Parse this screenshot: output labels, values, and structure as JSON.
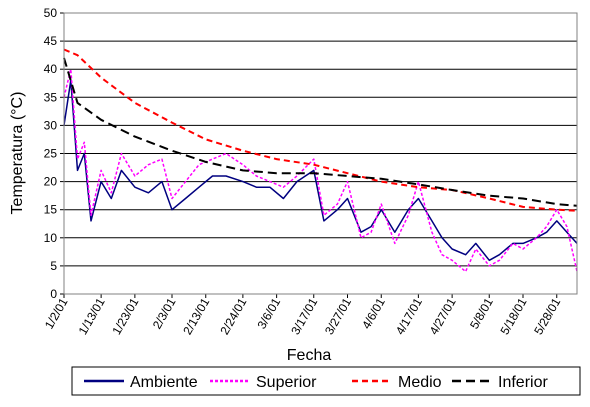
{
  "chart_data": {
    "type": "line",
    "xlabel": "Fecha",
    "ylabel": "Temperatura (°C)",
    "ylim": [
      0,
      50
    ],
    "yticks": [
      0,
      5,
      10,
      15,
      20,
      25,
      30,
      35,
      40,
      45,
      50
    ],
    "xlim": [
      "2001-01-02",
      "2001-06-03"
    ],
    "xtick_dates": [
      "2001-01-02",
      "2001-01-13",
      "2001-01-23",
      "2001-02-03",
      "2001-02-13",
      "2001-02-24",
      "2001-03-06",
      "2001-03-17",
      "2001-03-27",
      "2001-04-06",
      "2001-04-17",
      "2001-04-27",
      "2001-05-08",
      "2001-05-18",
      "2001-05-28"
    ],
    "xtick_labels": [
      "1/2/01",
      "1/13/01",
      "1/23/01",
      "2/3/01",
      "2/13/01",
      "2/24/01",
      "3/6/01",
      "3/17/01",
      "3/27/01",
      "4/6/01",
      "4/17/01",
      "4/27/01",
      "5/8/01",
      "5/18/01",
      "5/28/01"
    ],
    "grid": "horizontal",
    "legend_position": "bottom",
    "series": [
      {
        "name": "Ambiente",
        "color": "#000080",
        "style": "solid",
        "x": [
          "2001-01-02",
          "2001-01-04",
          "2001-01-06",
          "2001-01-08",
          "2001-01-10",
          "2001-01-13",
          "2001-01-16",
          "2001-01-19",
          "2001-01-23",
          "2001-01-27",
          "2001-01-31",
          "2001-02-03",
          "2001-02-07",
          "2001-02-11",
          "2001-02-15",
          "2001-02-19",
          "2001-02-24",
          "2001-02-28",
          "2001-03-04",
          "2001-03-08",
          "2001-03-12",
          "2001-03-17",
          "2001-03-20",
          "2001-03-24",
          "2001-03-27",
          "2001-03-31",
          "2001-04-03",
          "2001-04-06",
          "2001-04-10",
          "2001-04-14",
          "2001-04-17",
          "2001-04-21",
          "2001-04-24",
          "2001-04-27",
          "2001-05-01",
          "2001-05-04",
          "2001-05-08",
          "2001-05-11",
          "2001-05-15",
          "2001-05-18",
          "2001-05-22",
          "2001-05-25",
          "2001-05-28",
          "2001-05-31",
          "2001-06-03"
        ],
        "y": [
          30,
          38,
          22,
          25,
          13,
          20,
          17,
          22,
          19,
          18,
          20,
          15,
          17,
          19,
          21,
          21,
          20,
          19,
          19,
          17,
          20,
          22,
          13,
          15,
          17,
          11,
          12,
          15,
          11,
          15,
          17,
          13,
          10,
          8,
          7,
          9,
          6,
          7,
          9,
          9,
          10,
          11,
          13,
          11,
          9
        ]
      },
      {
        "name": "Superior",
        "color": "#ff00ff",
        "style": "dashed",
        "x": [
          "2001-01-02",
          "2001-01-04",
          "2001-01-06",
          "2001-01-08",
          "2001-01-10",
          "2001-01-13",
          "2001-01-16",
          "2001-01-19",
          "2001-01-23",
          "2001-01-27",
          "2001-01-31",
          "2001-02-03",
          "2001-02-07",
          "2001-02-11",
          "2001-02-15",
          "2001-02-19",
          "2001-02-24",
          "2001-02-28",
          "2001-03-04",
          "2001-03-08",
          "2001-03-12",
          "2001-03-17",
          "2001-03-20",
          "2001-03-24",
          "2001-03-27",
          "2001-03-31",
          "2001-04-03",
          "2001-04-06",
          "2001-04-10",
          "2001-04-14",
          "2001-04-17",
          "2001-04-21",
          "2001-04-24",
          "2001-04-27",
          "2001-05-01",
          "2001-05-04",
          "2001-05-08",
          "2001-05-11",
          "2001-05-15",
          "2001-05-18",
          "2001-05-22",
          "2001-05-25",
          "2001-05-28",
          "2001-05-31",
          "2001-06-03"
        ],
        "y": [
          35,
          40,
          24,
          27,
          14,
          22,
          18,
          25,
          21,
          23,
          24,
          17,
          20,
          23,
          24,
          25,
          23,
          21,
          20,
          19,
          21,
          24,
          14,
          16,
          20,
          10,
          11,
          16,
          9,
          14,
          20,
          11,
          7,
          6,
          4,
          8,
          5,
          6,
          9,
          8,
          10,
          12,
          15,
          12,
          4
        ]
      },
      {
        "name": "Medio",
        "color": "#ff0000",
        "style": "dashed",
        "x": [
          "2001-01-02",
          "2001-01-06",
          "2001-01-13",
          "2001-01-23",
          "2001-02-03",
          "2001-02-13",
          "2001-02-24",
          "2001-03-06",
          "2001-03-17",
          "2001-03-27",
          "2001-04-06",
          "2001-04-17",
          "2001-04-27",
          "2001-05-08",
          "2001-05-18",
          "2001-05-28",
          "2001-06-03"
        ],
        "y": [
          43.5,
          42.5,
          38.5,
          34,
          30.5,
          27.5,
          25.5,
          24,
          23,
          21.5,
          20,
          19,
          18.5,
          17,
          15.5,
          15,
          14.8
        ]
      },
      {
        "name": "Inferior",
        "color": "#000000",
        "style": "dashed",
        "x": [
          "2001-01-02",
          "2001-01-06",
          "2001-01-13",
          "2001-01-23",
          "2001-02-03",
          "2001-02-13",
          "2001-02-24",
          "2001-03-06",
          "2001-03-17",
          "2001-03-27",
          "2001-04-06",
          "2001-04-17",
          "2001-04-27",
          "2001-05-08",
          "2001-05-18",
          "2001-05-28",
          "2001-06-03"
        ],
        "y": [
          42,
          34,
          31,
          28,
          25.5,
          23.5,
          22,
          21.5,
          21.5,
          21,
          20.5,
          19.5,
          18.5,
          17.5,
          17,
          16,
          15.7
        ]
      }
    ]
  }
}
